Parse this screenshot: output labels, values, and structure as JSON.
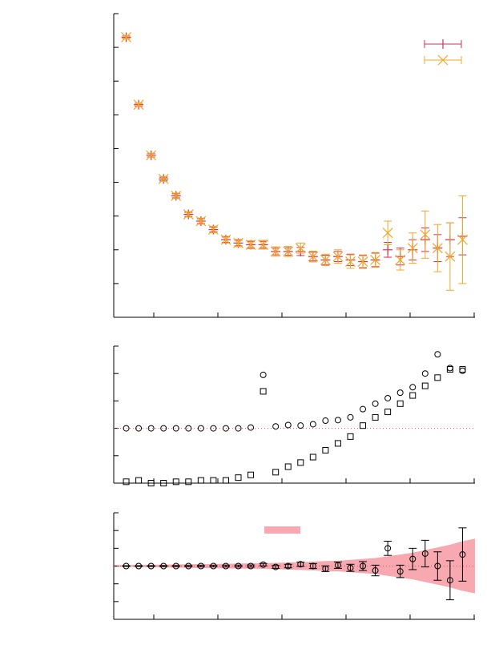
{
  "colors": {
    "red": "#d62f4f",
    "orange": "#f5a623",
    "black": "#000000",
    "ref_line": "#e05060",
    "band": "#f7a8b0"
  },
  "chart_data": [
    {
      "type": "scatter",
      "title": "",
      "xlabel": "",
      "ylabel": "",
      "grid": false,
      "legend": "top-right",
      "xlim": [
        0,
        28
      ],
      "ylim": [
        0,
        9
      ],
      "series": [
        {
          "name": "",
          "marker": "plus",
          "color": "#d62f4f",
          "x": [
            1,
            2,
            3,
            4,
            5,
            6,
            7,
            8,
            9,
            10,
            11,
            12,
            13,
            14,
            15,
            16,
            17,
            18,
            19,
            20,
            21,
            22,
            23,
            24,
            25,
            26,
            27,
            28
          ],
          "y": [
            8.3,
            6.3,
            4.8,
            4.1,
            3.6,
            3.05,
            2.85,
            2.6,
            2.3,
            2.2,
            2.15,
            2.15,
            1.95,
            1.95,
            1.95,
            1.8,
            1.7,
            1.8,
            1.7,
            1.65,
            1.7,
            2.0,
            1.8,
            2.0,
            2.3,
            2.05,
            2.3,
            2.4
          ],
          "err": [
            0.04,
            0.04,
            0.05,
            0.05,
            0.06,
            0.06,
            0.07,
            0.07,
            0.08,
            0.08,
            0.09,
            0.1,
            0.1,
            0.11,
            0.12,
            0.13,
            0.14,
            0.15,
            0.17,
            0.18,
            0.2,
            0.22,
            0.25,
            0.3,
            0.35,
            0.4,
            0.5,
            0.55
          ]
        },
        {
          "name": "",
          "marker": "x",
          "color": "#f5a623",
          "x": [
            1,
            2,
            3,
            4,
            5,
            6,
            7,
            8,
            9,
            10,
            11,
            12,
            13,
            14,
            15,
            16,
            17,
            18,
            19,
            20,
            21,
            22,
            23,
            24,
            25,
            26,
            27,
            28
          ],
          "y": [
            8.3,
            6.3,
            4.8,
            4.1,
            3.6,
            3.05,
            2.85,
            2.6,
            2.3,
            2.2,
            2.15,
            2.15,
            1.95,
            1.95,
            2.05,
            1.8,
            1.7,
            1.8,
            1.65,
            1.65,
            1.7,
            2.5,
            1.7,
            2.05,
            2.45,
            2.05,
            1.8,
            2.3
          ],
          "err": [
            0.05,
            0.05,
            0.06,
            0.07,
            0.08,
            0.08,
            0.09,
            0.1,
            0.1,
            0.11,
            0.12,
            0.13,
            0.14,
            0.15,
            0.15,
            0.16,
            0.17,
            0.2,
            0.2,
            0.2,
            0.22,
            0.35,
            0.3,
            0.45,
            0.7,
            0.7,
            1.0,
            1.3
          ]
        }
      ]
    },
    {
      "type": "scatter",
      "title": "",
      "xlabel": "",
      "ylabel": "",
      "grid": false,
      "xlim": [
        0,
        28
      ],
      "ylim": [
        0,
        5
      ],
      "reference_line": 2,
      "series": [
        {
          "name": "",
          "marker": "circle",
          "x": [
            1,
            2,
            3,
            4,
            5,
            6,
            7,
            8,
            9,
            10,
            11,
            12,
            13,
            14,
            15,
            16,
            17,
            18,
            19,
            20,
            21,
            22,
            23,
            24,
            25,
            26,
            27,
            28
          ],
          "y": [
            2.0,
            2.0,
            2.0,
            2.0,
            2.0,
            2.0,
            2.0,
            2.0,
            2.0,
            2.0,
            2.03,
            3.95,
            2.07,
            2.12,
            2.1,
            2.15,
            2.28,
            2.3,
            2.4,
            2.7,
            2.9,
            3.1,
            3.3,
            3.5,
            4.0,
            4.7,
            4.2,
            4.1
          ]
        },
        {
          "name": "",
          "marker": "square",
          "x": [
            1,
            2,
            3,
            4,
            5,
            6,
            7,
            8,
            9,
            10,
            11,
            12,
            13,
            14,
            15,
            16,
            17,
            18,
            19,
            20,
            21,
            22,
            23,
            24,
            25,
            26,
            27,
            28
          ],
          "y": [
            0.05,
            0.1,
            0.0,
            0.0,
            0.05,
            0.05,
            0.1,
            0.1,
            0.1,
            0.2,
            0.3,
            3.35,
            0.4,
            0.6,
            0.75,
            0.95,
            1.2,
            1.45,
            1.7,
            2.1,
            2.4,
            2.6,
            2.9,
            3.2,
            3.55,
            3.85,
            4.15,
            4.15
          ]
        }
      ]
    },
    {
      "type": "scatter",
      "title": "",
      "xlabel": "",
      "ylabel": "",
      "grid": false,
      "legend": "top-center",
      "xlim": [
        0,
        28
      ],
      "ylim": [
        -3,
        3
      ],
      "reference_line": 0,
      "series": [
        {
          "name": "",
          "marker": "circle",
          "x": [
            1,
            2,
            3,
            4,
            5,
            6,
            7,
            8,
            9,
            10,
            11,
            12,
            13,
            14,
            15,
            16,
            17,
            18,
            19,
            20,
            21,
            22,
            23,
            24,
            25,
            26,
            27,
            28
          ],
          "y": [
            0.0,
            0.0,
            0.0,
            0.0,
            0.0,
            0.0,
            0.0,
            0.0,
            0.0,
            0.0,
            0.0,
            0.08,
            -0.05,
            0.0,
            0.1,
            0.0,
            -0.15,
            0.05,
            -0.1,
            0.0,
            -0.25,
            1.0,
            -0.3,
            0.4,
            0.7,
            0.0,
            -0.8,
            0.65
          ],
          "err": [
            0.02,
            0.02,
            0.02,
            0.03,
            0.03,
            0.03,
            0.04,
            0.04,
            0.05,
            0.05,
            0.06,
            0.07,
            0.08,
            0.1,
            0.12,
            0.14,
            0.16,
            0.18,
            0.2,
            0.25,
            0.3,
            0.4,
            0.35,
            0.6,
            0.75,
            0.8,
            1.1,
            1.5
          ]
        }
      ],
      "band_halfwidth": [
        0.05,
        0.06,
        0.07,
        0.08,
        0.09,
        0.1,
        0.11,
        0.12,
        0.13,
        0.14,
        0.15,
        0.16,
        0.18,
        0.2,
        0.22,
        0.25,
        0.28,
        0.3,
        0.35,
        0.4,
        0.45,
        0.55,
        0.65,
        0.75,
        0.9,
        1.05,
        1.2,
        1.4
      ]
    }
  ]
}
